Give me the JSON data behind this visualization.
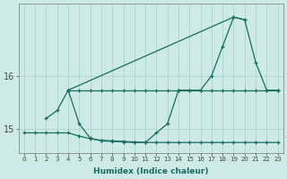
{
  "xlabel": "Humidex (Indice chaleur)",
  "bg_color": "#cdeae7",
  "grid_color": "#b0d8d4",
  "line_color": "#1a6b60",
  "xlim": [
    -0.5,
    23.5
  ],
  "ylim": [
    14.55,
    17.35
  ],
  "yticks": [
    15,
    16
  ],
  "xticks": [
    0,
    1,
    2,
    3,
    4,
    5,
    6,
    7,
    8,
    9,
    10,
    11,
    12,
    13,
    14,
    15,
    16,
    17,
    18,
    19,
    20,
    21,
    22,
    23
  ],
  "line1_x": [
    0,
    1,
    2,
    3,
    4,
    5,
    6,
    7,
    8,
    9,
    10,
    11,
    12,
    13,
    14,
    15,
    16,
    17,
    18,
    19,
    20,
    21,
    22,
    23
  ],
  "line1_y": [
    14.93,
    14.93,
    14.93,
    14.93,
    14.93,
    14.87,
    14.82,
    14.79,
    14.78,
    14.77,
    14.76,
    14.75,
    14.75,
    14.75,
    14.75,
    14.75,
    14.75,
    14.75,
    14.75,
    14.75,
    14.75,
    14.75,
    14.75,
    14.75
  ],
  "line2_x": [
    4,
    5,
    6,
    7,
    8,
    9,
    10,
    11,
    12,
    13,
    14,
    15,
    16,
    17,
    18,
    19,
    20,
    21,
    22,
    23
  ],
  "line2_y": [
    15.73,
    15.73,
    15.73,
    15.73,
    15.73,
    15.73,
    15.73,
    15.73,
    15.73,
    15.73,
    15.73,
    15.73,
    15.73,
    15.73,
    15.73,
    15.73,
    15.73,
    15.73,
    15.73,
    15.73
  ],
  "line3_x": [
    2,
    3,
    4,
    5,
    6,
    7,
    8,
    9,
    10,
    11,
    12,
    13,
    14,
    15,
    16,
    17,
    18,
    19,
    20,
    21,
    22,
    23
  ],
  "line3_y": [
    15.2,
    15.35,
    15.73,
    15.1,
    14.83,
    14.78,
    14.77,
    14.76,
    14.75,
    14.75,
    14.93,
    15.1,
    15.73,
    15.73,
    15.73,
    16.0,
    16.55,
    17.1,
    17.05,
    16.25,
    15.73,
    15.73
  ],
  "line4_x": [
    4,
    19,
    20
  ],
  "line4_y": [
    15.73,
    17.1,
    17.05
  ]
}
